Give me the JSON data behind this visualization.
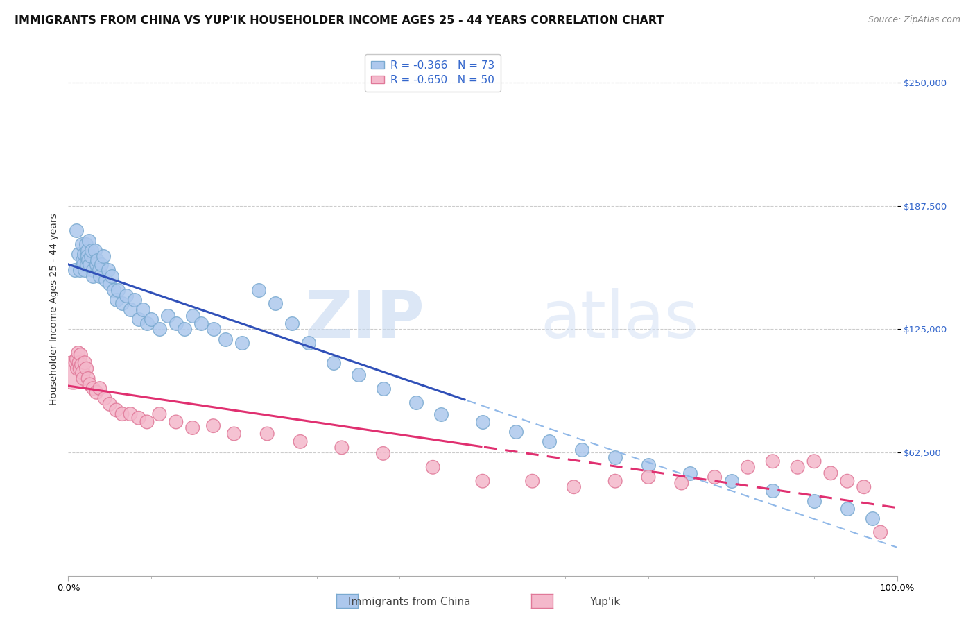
{
  "title": "IMMIGRANTS FROM CHINA VS YUP'IK HOUSEHOLDER INCOME AGES 25 - 44 YEARS CORRELATION CHART",
  "source": "Source: ZipAtlas.com",
  "ylabel": "Householder Income Ages 25 - 44 years",
  "y_ticks": [
    62500,
    125000,
    187500,
    250000
  ],
  "y_tick_labels": [
    "$62,500",
    "$125,000",
    "$187,500",
    "$250,000"
  ],
  "xlim": [
    0.0,
    1.0
  ],
  "ylim": [
    0,
    270000
  ],
  "legend_entry1": "R = -0.366   N = 73",
  "legend_entry2": "R = -0.650   N = 50",
  "legend_label1": "Immigrants from China",
  "legend_label2": "Yup'ik",
  "blue_color": "#adc8ed",
  "blue_edge": "#7aaad0",
  "pink_color": "#f4b8cb",
  "pink_edge": "#e07898",
  "line_blue": "#3050b8",
  "line_pink": "#e03070",
  "line_blue_dash": "#90b8e8",
  "grid_color": "#cccccc",
  "background_color": "#ffffff",
  "watermark_zip": "ZIP",
  "watermark_atlas": "atlas",
  "title_fontsize": 11.5,
  "source_fontsize": 9,
  "ylabel_fontsize": 10,
  "tick_fontsize": 9.5,
  "legend_fontsize": 11,
  "dot_size": 200,
  "china_x": [
    0.008,
    0.01,
    0.012,
    0.014,
    0.016,
    0.017,
    0.018,
    0.019,
    0.02,
    0.021,
    0.022,
    0.022,
    0.023,
    0.023,
    0.024,
    0.025,
    0.026,
    0.027,
    0.028,
    0.03,
    0.03,
    0.032,
    0.034,
    0.035,
    0.037,
    0.038,
    0.04,
    0.042,
    0.045,
    0.048,
    0.05,
    0.052,
    0.055,
    0.058,
    0.06,
    0.065,
    0.07,
    0.075,
    0.08,
    0.085,
    0.09,
    0.095,
    0.1,
    0.11,
    0.12,
    0.13,
    0.14,
    0.15,
    0.16,
    0.175,
    0.19,
    0.21,
    0.23,
    0.25,
    0.27,
    0.29,
    0.32,
    0.35,
    0.38,
    0.42,
    0.45,
    0.5,
    0.54,
    0.58,
    0.62,
    0.66,
    0.7,
    0.75,
    0.8,
    0.85,
    0.9,
    0.94,
    0.97
  ],
  "china_y": [
    155000,
    175000,
    163000,
    155000,
    168000,
    160000,
    158000,
    163000,
    155000,
    168000,
    162000,
    158000,
    165000,
    162000,
    160000,
    170000,
    158000,
    162000,
    165000,
    155000,
    152000,
    165000,
    158000,
    160000,
    155000,
    152000,
    158000,
    162000,
    150000,
    155000,
    148000,
    152000,
    145000,
    140000,
    145000,
    138000,
    142000,
    135000,
    140000,
    130000,
    135000,
    128000,
    130000,
    125000,
    132000,
    128000,
    125000,
    132000,
    128000,
    125000,
    120000,
    118000,
    145000,
    138000,
    128000,
    118000,
    108000,
    102000,
    95000,
    88000,
    82000,
    78000,
    73000,
    68000,
    64000,
    60000,
    56000,
    52000,
    48000,
    43000,
    38000,
    34000,
    29000
  ],
  "yupik_x": [
    0.006,
    0.009,
    0.01,
    0.011,
    0.012,
    0.013,
    0.014,
    0.015,
    0.016,
    0.017,
    0.018,
    0.02,
    0.022,
    0.024,
    0.026,
    0.03,
    0.034,
    0.038,
    0.044,
    0.05,
    0.058,
    0.065,
    0.075,
    0.085,
    0.095,
    0.11,
    0.13,
    0.15,
    0.175,
    0.2,
    0.24,
    0.28,
    0.33,
    0.38,
    0.44,
    0.5,
    0.56,
    0.61,
    0.66,
    0.7,
    0.74,
    0.78,
    0.82,
    0.85,
    0.88,
    0.9,
    0.92,
    0.94,
    0.96,
    0.98
  ],
  "yupik_y": [
    103000,
    108000,
    110000,
    105000,
    113000,
    108000,
    105000,
    112000,
    107000,
    103000,
    100000,
    108000,
    105000,
    100000,
    97000,
    95000,
    93000,
    95000,
    90000,
    87000,
    84000,
    82000,
    82000,
    80000,
    78000,
    82000,
    78000,
    75000,
    76000,
    72000,
    72000,
    68000,
    65000,
    62000,
    55000,
    48000,
    48000,
    45000,
    48000,
    50000,
    47000,
    50000,
    55000,
    58000,
    55000,
    58000,
    52000,
    48000,
    45000,
    22000
  ],
  "yupik_large_idx": 0,
  "yupik_large_size": 1200
}
